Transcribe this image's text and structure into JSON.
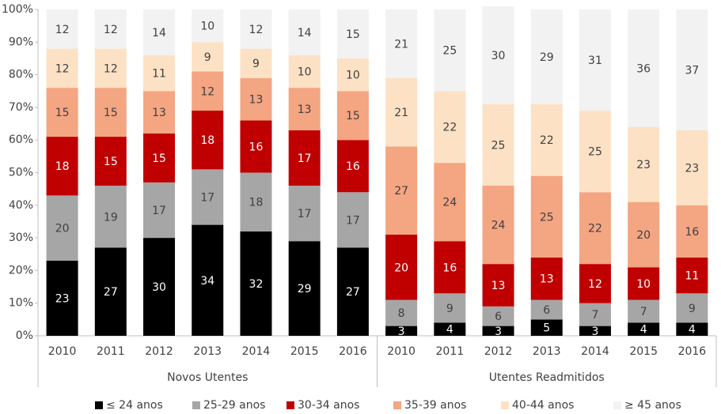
{
  "chart_data": {
    "type": "stacked_bar",
    "groups": [
      {
        "name": "Novos Utentes",
        "categories": [
          "2010",
          "2011",
          "2012",
          "2013",
          "2014",
          "2015",
          "2016"
        ]
      },
      {
        "name": "Utentes Readmitidos",
        "categories": [
          "2010",
          "2011",
          "2012",
          "2013",
          "2014",
          "2015",
          "2016"
        ]
      }
    ],
    "series": [
      {
        "name": "≤ 24 anos",
        "color": "#000000",
        "values": [
          23,
          27,
          30,
          34,
          32,
          29,
          27,
          3,
          4,
          3,
          5,
          3,
          4,
          4
        ]
      },
      {
        "name": "25-29 anos",
        "color": "#a6a6a6",
        "values": [
          20,
          19,
          17,
          17,
          18,
          17,
          17,
          8,
          9,
          6,
          6,
          7,
          7,
          9
        ]
      },
      {
        "name": "30-34 anos",
        "color": "#c00000",
        "values": [
          18,
          15,
          15,
          18,
          16,
          17,
          16,
          20,
          16,
          13,
          13,
          12,
          10,
          11
        ]
      },
      {
        "name": "35-39 anos",
        "color": "#f4a582",
        "values": [
          15,
          15,
          13,
          12,
          13,
          13,
          15,
          27,
          24,
          24,
          25,
          22,
          20,
          16
        ]
      },
      {
        "name": "40-44 anos",
        "color": "#fde1c4",
        "values": [
          12,
          12,
          11,
          9,
          9,
          10,
          10,
          21,
          22,
          25,
          22,
          25,
          23,
          23
        ]
      },
      {
        "name": "≥ 45 anos",
        "color": "#f2f2f2",
        "values": [
          12,
          12,
          14,
          10,
          12,
          14,
          15,
          21,
          25,
          30,
          29,
          31,
          36,
          37
        ]
      }
    ],
    "ylim": [
      0,
      100
    ],
    "yticks": [
      {
        "value": 0,
        "label": "0%"
      },
      {
        "value": 10,
        "label": "10%"
      },
      {
        "value": 20,
        "label": "20%"
      },
      {
        "value": 30,
        "label": "30%"
      },
      {
        "value": 40,
        "label": "40%"
      },
      {
        "value": 50,
        "label": "50%"
      },
      {
        "value": 60,
        "label": "60%"
      },
      {
        "value": 70,
        "label": "70%"
      },
      {
        "value": 80,
        "label": "80%"
      },
      {
        "value": 90,
        "label": "90%"
      },
      {
        "value": 100,
        "label": "100%"
      }
    ],
    "grid": false,
    "legend": "bottom"
  }
}
